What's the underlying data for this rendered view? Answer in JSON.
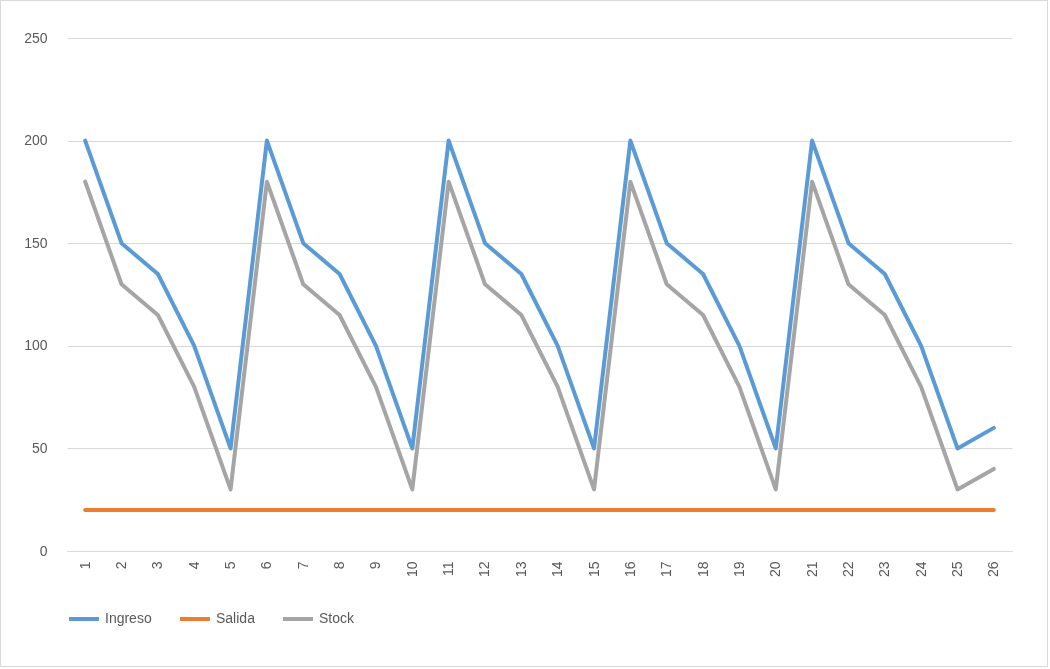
{
  "chart_data": {
    "type": "line",
    "categories": [
      "1",
      "2",
      "3",
      "4",
      "5",
      "6",
      "7",
      "8",
      "9",
      "10",
      "11",
      "12",
      "13",
      "14",
      "15",
      "16",
      "17",
      "18",
      "19",
      "20",
      "21",
      "22",
      "23",
      "24",
      "25",
      "26"
    ],
    "series": [
      {
        "name": "Ingreso",
        "color": "#5b9bd5",
        "values": [
          200,
          150,
          135,
          100,
          50,
          200,
          150,
          135,
          100,
          50,
          200,
          150,
          135,
          100,
          50,
          200,
          150,
          135,
          100,
          50,
          200,
          150,
          135,
          100,
          50,
          60
        ]
      },
      {
        "name": "Salida",
        "color": "#ed7d31",
        "values": [
          20,
          20,
          20,
          20,
          20,
          20,
          20,
          20,
          20,
          20,
          20,
          20,
          20,
          20,
          20,
          20,
          20,
          20,
          20,
          20,
          20,
          20,
          20,
          20,
          20,
          20
        ]
      },
      {
        "name": "Stock",
        "color": "#a5a5a5",
        "values": [
          180,
          130,
          115,
          80,
          30,
          180,
          130,
          115,
          80,
          30,
          180,
          130,
          115,
          80,
          30,
          180,
          130,
          115,
          80,
          30,
          180,
          130,
          115,
          80,
          30,
          40
        ]
      }
    ],
    "ylim": [
      0,
      250
    ],
    "yticks": [
      0,
      50,
      100,
      150,
      200,
      250
    ],
    "grid": "y",
    "legend": "bottom",
    "marker": "none",
    "line_style": "solid"
  }
}
